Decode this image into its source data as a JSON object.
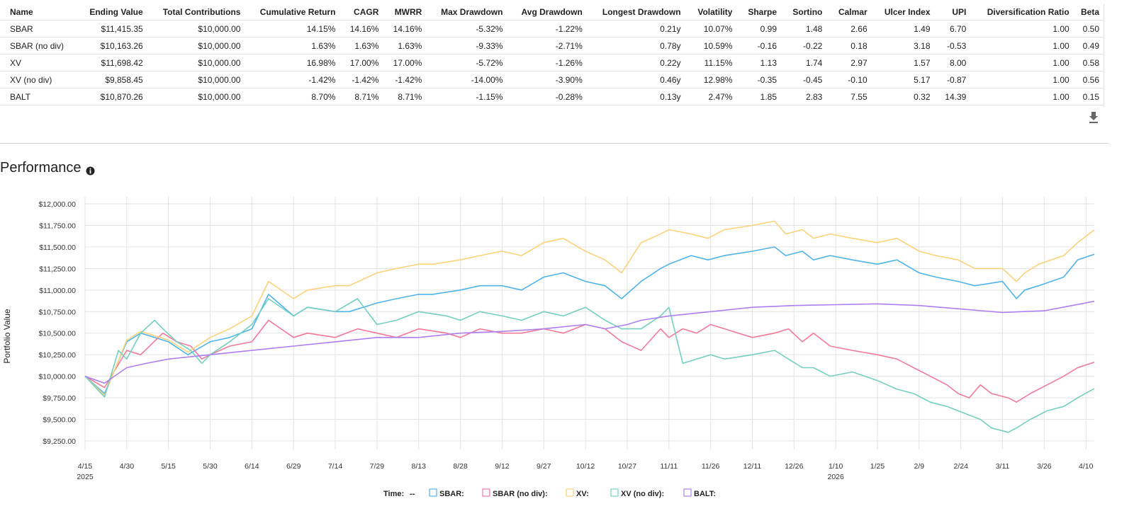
{
  "table": {
    "columns": [
      "Name",
      "Ending Value",
      "Total Contributions",
      "Cumulative Return",
      "CAGR",
      "MWRR",
      "Max Drawdown",
      "Avg Drawdown",
      "Longest Drawdown",
      "Volatility",
      "Sharpe",
      "Sortino",
      "Calmar",
      "Ulcer Index",
      "UPI",
      "Diversification Ratio",
      "Beta"
    ],
    "rows": [
      [
        "SBAR",
        "$11,415.35",
        "$10,000.00",
        "14.15%",
        "14.16%",
        "14.16%",
        "-5.32%",
        "-1.22%",
        "0.21y",
        "10.07%",
        "0.99",
        "1.48",
        "2.66",
        "1.49",
        "6.70",
        "1.00",
        "0.50"
      ],
      [
        "SBAR (no div)",
        "$10,163.26",
        "$10,000.00",
        "1.63%",
        "1.63%",
        "1.63%",
        "-9.33%",
        "-2.71%",
        "0.78y",
        "10.59%",
        "-0.16",
        "-0.22",
        "0.18",
        "3.18",
        "-0.53",
        "1.00",
        "0.49"
      ],
      [
        "XV",
        "$11,698.42",
        "$10,000.00",
        "16.98%",
        "17.00%",
        "17.00%",
        "-5.72%",
        "-1.26%",
        "0.22y",
        "11.15%",
        "1.13",
        "1.74",
        "2.97",
        "1.57",
        "8.00",
        "1.00",
        "0.58"
      ],
      [
        "XV (no div)",
        "$9,858.45",
        "$10,000.00",
        "-1.42%",
        "-1.42%",
        "-1.42%",
        "-14.00%",
        "-3.90%",
        "0.46y",
        "12.98%",
        "-0.35",
        "-0.45",
        "-0.10",
        "5.17",
        "-0.87",
        "1.00",
        "0.56"
      ],
      [
        "BALT",
        "$10,870.26",
        "$10,000.00",
        "8.70%",
        "8.71%",
        "8.71%",
        "-1.15%",
        "-0.28%",
        "0.13y",
        "2.47%",
        "1.85",
        "2.83",
        "7.55",
        "0.32",
        "14.39",
        "1.00",
        "0.15"
      ]
    ]
  },
  "performance": {
    "title": "Performance"
  },
  "legend": {
    "time_label": "Time:",
    "time_value": "--"
  },
  "icons": {
    "download": "download-icon",
    "info": "info-icon"
  },
  "chart_data": {
    "type": "line",
    "ylabel": "Portfolio Value",
    "ylim": [
      9250,
      12000
    ],
    "yticks": [
      "$9,250.00",
      "$9,500.00",
      "$9,750.00",
      "$10,000.00",
      "$10,250.00",
      "$10,500.00",
      "$10,750.00",
      "$11,000.00",
      "$11,250.00",
      "$11,500.00",
      "$11,750.00",
      "$12,000.00"
    ],
    "xticks": [
      "4/15",
      "4/30",
      "5/15",
      "5/30",
      "6/14",
      "6/29",
      "7/14",
      "7/29",
      "8/13",
      "8/28",
      "9/12",
      "9/27",
      "10/12",
      "10/27",
      "11/11",
      "11/26",
      "12/11",
      "12/26",
      "1/10",
      "1/25",
      "2/9",
      "2/24",
      "3/11",
      "3/26",
      "4/10"
    ],
    "xtick_years": [
      {
        "at": "4/15",
        "label": "2025"
      },
      {
        "at": "1/10",
        "label": "2026"
      }
    ],
    "x_unit": "days since 2025-04-15",
    "x_range": [
      0,
      363
    ],
    "grid": true,
    "series": [
      {
        "name": "SBAR",
        "color": "#4fb3e8",
        "x": [
          0,
          7,
          15,
          20,
          30,
          37,
          45,
          52,
          60,
          66,
          75,
          80,
          90,
          95,
          105,
          112,
          120,
          125,
          135,
          142,
          150,
          157,
          165,
          172,
          180,
          187,
          193,
          200,
          207,
          210,
          218,
          224,
          230,
          240,
          248,
          252,
          258,
          262,
          268,
          276,
          285,
          292,
          300,
          306,
          314,
          320,
          330,
          335,
          338,
          343,
          352,
          357,
          363
        ],
        "y": [
          10000,
          9800,
          10400,
          10500,
          10400,
          10250,
          10400,
          10450,
          10550,
          10950,
          10700,
          10800,
          10750,
          10750,
          10850,
          10900,
          10950,
          10950,
          11000,
          11050,
          11050,
          11000,
          11150,
          11200,
          11100,
          11050,
          10900,
          11100,
          11250,
          11300,
          11400,
          11350,
          11400,
          11450,
          11500,
          11400,
          11450,
          11350,
          11400,
          11350,
          11300,
          11350,
          11200,
          11150,
          11100,
          11050,
          11100,
          10900,
          11000,
          11050,
          11150,
          11350,
          11415
        ]
      },
      {
        "name": "SBAR (no div)",
        "color": "#f27a98",
        "x": [
          0,
          7,
          15,
          20,
          28,
          33,
          38,
          42,
          45,
          52,
          60,
          66,
          75,
          80,
          90,
          98,
          105,
          112,
          120,
          130,
          135,
          142,
          150,
          157,
          165,
          172,
          180,
          187,
          193,
          200,
          207,
          210,
          215,
          220,
          225,
          230,
          240,
          248,
          253,
          258,
          262,
          268,
          276,
          285,
          292,
          298,
          304,
          310,
          314,
          318,
          322,
          326,
          332,
          335,
          340,
          346,
          352,
          357,
          363
        ],
        "y": [
          10000,
          9870,
          10300,
          10250,
          10500,
          10400,
          10350,
          10200,
          10250,
          10350,
          10400,
          10650,
          10450,
          10500,
          10450,
          10550,
          10500,
          10450,
          10550,
          10500,
          10450,
          10550,
          10500,
          10500,
          10550,
          10500,
          10600,
          10550,
          10400,
          10300,
          10550,
          10450,
          10550,
          10500,
          10600,
          10550,
          10450,
          10500,
          10550,
          10400,
          10500,
          10350,
          10300,
          10250,
          10200,
          10100,
          10000,
          9900,
          9800,
          9750,
          9900,
          9800,
          9750,
          9700,
          9800,
          9900,
          10000,
          10100,
          10163
        ]
      },
      {
        "name": "XV",
        "color": "#fbd279",
        "x": [
          0,
          7,
          15,
          20,
          30,
          37,
          45,
          52,
          60,
          66,
          75,
          80,
          90,
          95,
          105,
          112,
          120,
          125,
          135,
          142,
          150,
          157,
          165,
          172,
          180,
          187,
          193,
          200,
          207,
          210,
          218,
          224,
          230,
          240,
          248,
          252,
          258,
          262,
          268,
          276,
          285,
          292,
          300,
          306,
          314,
          320,
          330,
          335,
          338,
          343,
          352,
          357,
          363
        ],
        "y": [
          10000,
          9780,
          10420,
          10520,
          10420,
          10280,
          10450,
          10550,
          10700,
          11100,
          10900,
          11000,
          11050,
          11050,
          11200,
          11250,
          11300,
          11300,
          11350,
          11400,
          11450,
          11400,
          11550,
          11600,
          11450,
          11350,
          11200,
          11550,
          11650,
          11700,
          11650,
          11600,
          11700,
          11750,
          11800,
          11650,
          11700,
          11600,
          11650,
          11600,
          11550,
          11600,
          11450,
          11400,
          11350,
          11250,
          11250,
          11100,
          11200,
          11300,
          11400,
          11550,
          11698
        ]
      },
      {
        "name": "XV (no div)",
        "color": "#74cfc0",
        "x": [
          0,
          7,
          12,
          15,
          20,
          25,
          28,
          33,
          38,
          42,
          45,
          52,
          60,
          66,
          75,
          80,
          90,
          98,
          105,
          112,
          120,
          130,
          135,
          142,
          150,
          157,
          165,
          172,
          180,
          187,
          193,
          200,
          207,
          210,
          215,
          220,
          225,
          230,
          240,
          248,
          253,
          258,
          262,
          268,
          276,
          285,
          292,
          298,
          304,
          310,
          314,
          318,
          322,
          326,
          332,
          335,
          340,
          346,
          352,
          357,
          363
        ],
        "y": [
          10000,
          9760,
          10300,
          10200,
          10500,
          10650,
          10550,
          10400,
          10300,
          10150,
          10250,
          10400,
          10600,
          10900,
          10700,
          10800,
          10750,
          10900,
          10600,
          10650,
          10750,
          10700,
          10650,
          10750,
          10700,
          10650,
          10750,
          10700,
          10800,
          10650,
          10550,
          10550,
          10700,
          10800,
          10150,
          10200,
          10250,
          10200,
          10250,
          10300,
          10200,
          10100,
          10100,
          10000,
          10050,
          9950,
          9850,
          9800,
          9700,
          9650,
          9600,
          9550,
          9500,
          9400,
          9350,
          9400,
          9500,
          9600,
          9650,
          9750,
          9858
        ]
      },
      {
        "name": "BALT",
        "color": "#ac7ff0",
        "x": [
          0,
          7,
          15,
          22,
          30,
          45,
          60,
          75,
          90,
          105,
          120,
          135,
          150,
          165,
          180,
          187,
          195,
          200,
          210,
          225,
          240,
          255,
          270,
          285,
          300,
          315,
          330,
          345,
          355,
          363
        ],
        "y": [
          10000,
          9920,
          10100,
          10150,
          10200,
          10250,
          10300,
          10350,
          10400,
          10450,
          10450,
          10500,
          10520,
          10550,
          10600,
          10550,
          10600,
          10650,
          10700,
          10750,
          10800,
          10820,
          10830,
          10840,
          10820,
          10780,
          10740,
          10760,
          10820,
          10870
        ]
      }
    ]
  }
}
